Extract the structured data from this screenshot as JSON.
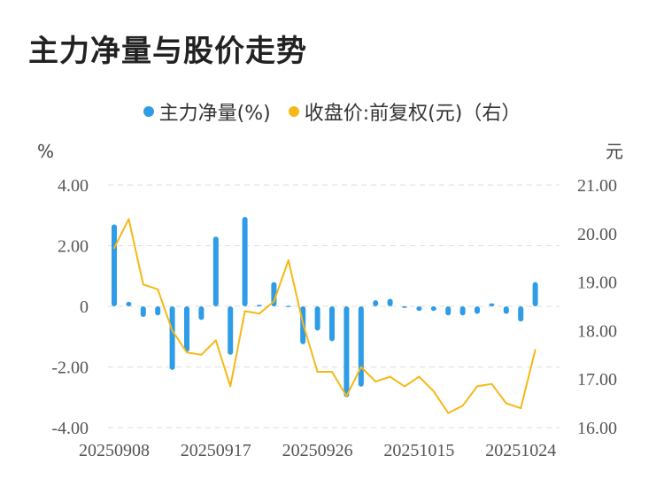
{
  "title": "主力净量与股价走势",
  "legend": {
    "bar_label": "主力净量(%)",
    "line_label": "收盘价:前复权(元)（右）"
  },
  "units": {
    "left": "%",
    "right": "元"
  },
  "colors": {
    "bar": "#2e9ce6",
    "line": "#f5b816",
    "grid": "#dddddd"
  },
  "chart_data": {
    "type": "bar",
    "title": "主力净量与股价走势",
    "x_tick_labels": [
      "20250908",
      "20250917",
      "20250926",
      "20251015",
      "20251024"
    ],
    "x_tick_indices": [
      0,
      7,
      14,
      21,
      28
    ],
    "left_axis": {
      "label": "%",
      "ylim": [
        -4,
        4
      ],
      "ticks": [
        4,
        2,
        0,
        -2,
        -4
      ],
      "tick_labels": [
        "4.00",
        "2.00",
        "0",
        "-2.00",
        "-4.00"
      ]
    },
    "right_axis": {
      "label": "元",
      "ylim": [
        16,
        21
      ],
      "ticks": [
        21,
        20,
        19,
        18,
        17,
        16
      ],
      "tick_labels": [
        "21.00",
        "20.00",
        "19.00",
        "18.00",
        "17.00",
        "16.00"
      ]
    },
    "grid": true,
    "series": [
      {
        "name": "主力净量(%)",
        "type": "bar",
        "axis": "left",
        "values": [
          2.7,
          0.15,
          -0.35,
          -0.3,
          -2.1,
          -1.5,
          -0.45,
          2.3,
          -1.6,
          2.95,
          0.05,
          0.8,
          0.02,
          -1.25,
          -0.8,
          -1.15,
          -3.0,
          -2.65,
          0.2,
          0.25,
          -0.05,
          -0.15,
          -0.15,
          -0.3,
          -0.3,
          -0.25,
          0.1,
          -0.25,
          -0.5,
          0.8
        ]
      },
      {
        "name": "收盘价:前复权(元)（右）",
        "type": "line",
        "axis": "right",
        "values": [
          19.7,
          20.3,
          18.95,
          18.85,
          18.0,
          17.55,
          17.5,
          17.8,
          16.85,
          18.4,
          18.35,
          18.6,
          19.45,
          18.15,
          17.15,
          17.15,
          16.65,
          17.25,
          16.95,
          17.05,
          16.85,
          17.05,
          16.75,
          16.3,
          16.45,
          16.85,
          16.9,
          16.5,
          16.4,
          17.6
        ]
      }
    ]
  }
}
